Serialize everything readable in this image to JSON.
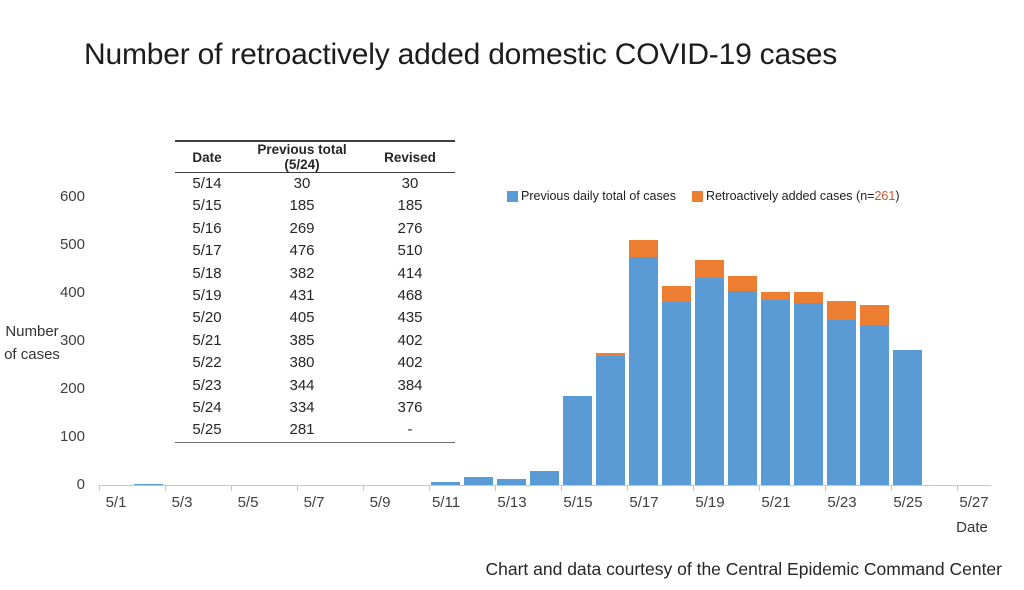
{
  "title": "Number of retroactively added domestic COVID-19 cases",
  "credit": "Chart and data courtesy of the Central Epidemic Command Center",
  "ylabel_line1": "Number",
  "ylabel_line2": "of cases",
  "xlabel": "Date",
  "colors": {
    "previous_series": "#5B9BD5",
    "added_series": "#ED7D31",
    "axis_line": "#C6C6C6",
    "axis_text": "#404040",
    "legend_n_accent": "#C05A2E"
  },
  "table": {
    "headers": [
      "Date",
      "Previous total (5/24)",
      "Revised"
    ],
    "rows": [
      [
        "5/14",
        "30",
        "30"
      ],
      [
        "5/15",
        "185",
        "185"
      ],
      [
        "5/16",
        "269",
        "276"
      ],
      [
        "5/17",
        "476",
        "510"
      ],
      [
        "5/18",
        "382",
        "414"
      ],
      [
        "5/19",
        "431",
        "468"
      ],
      [
        "5/20",
        "405",
        "435"
      ],
      [
        "5/21",
        "385",
        "402"
      ],
      [
        "5/22",
        "380",
        "402"
      ],
      [
        "5/23",
        "344",
        "384"
      ],
      [
        "5/24",
        "334",
        "376"
      ],
      [
        "5/25",
        "281",
        "-"
      ]
    ]
  },
  "legend": {
    "previous_label": "Previous daily total of cases",
    "added_label_prefix": "Retroactively added cases (n=",
    "added_n": "261",
    "added_label_suffix": ")"
  },
  "chart_data": {
    "type": "bar",
    "stacked": true,
    "title": "Number of retroactively added domestic COVID-19 cases",
    "xlabel": "Date",
    "ylabel": "Number of cases",
    "ylim": [
      0,
      600
    ],
    "y_ticks": [
      0,
      100,
      200,
      300,
      400,
      500,
      600
    ],
    "x_tick_labels": [
      "5/1",
      "5/3",
      "5/5",
      "5/7",
      "5/9",
      "5/11",
      "5/13",
      "5/15",
      "5/17",
      "5/19",
      "5/21",
      "5/23",
      "5/25",
      "5/27"
    ],
    "categories": [
      "5/1",
      "5/2",
      "5/3",
      "5/4",
      "5/5",
      "5/6",
      "5/7",
      "5/8",
      "5/9",
      "5/10",
      "5/11",
      "5/12",
      "5/13",
      "5/14",
      "5/15",
      "5/16",
      "5/17",
      "5/18",
      "5/19",
      "5/20",
      "5/21",
      "5/22",
      "5/23",
      "5/24",
      "5/25",
      "5/26",
      "5/27"
    ],
    "series": [
      {
        "name": "Previous daily total of cases",
        "color": "#5B9BD5",
        "values": [
          0,
          3,
          0,
          0,
          0,
          0,
          0,
          0,
          0,
          0,
          7,
          16,
          13,
          30,
          185,
          269,
          476,
          382,
          431,
          405,
          385,
          380,
          344,
          334,
          281,
          0,
          0
        ]
      },
      {
        "name": "Retroactively added cases (n=261)",
        "color": "#ED7D31",
        "values": [
          0,
          0,
          0,
          0,
          0,
          0,
          0,
          0,
          0,
          0,
          0,
          0,
          0,
          0,
          0,
          7,
          34,
          32,
          37,
          30,
          17,
          22,
          40,
          42,
          0,
          0,
          0
        ]
      }
    ],
    "grid": false,
    "legend_position": "top-right"
  }
}
